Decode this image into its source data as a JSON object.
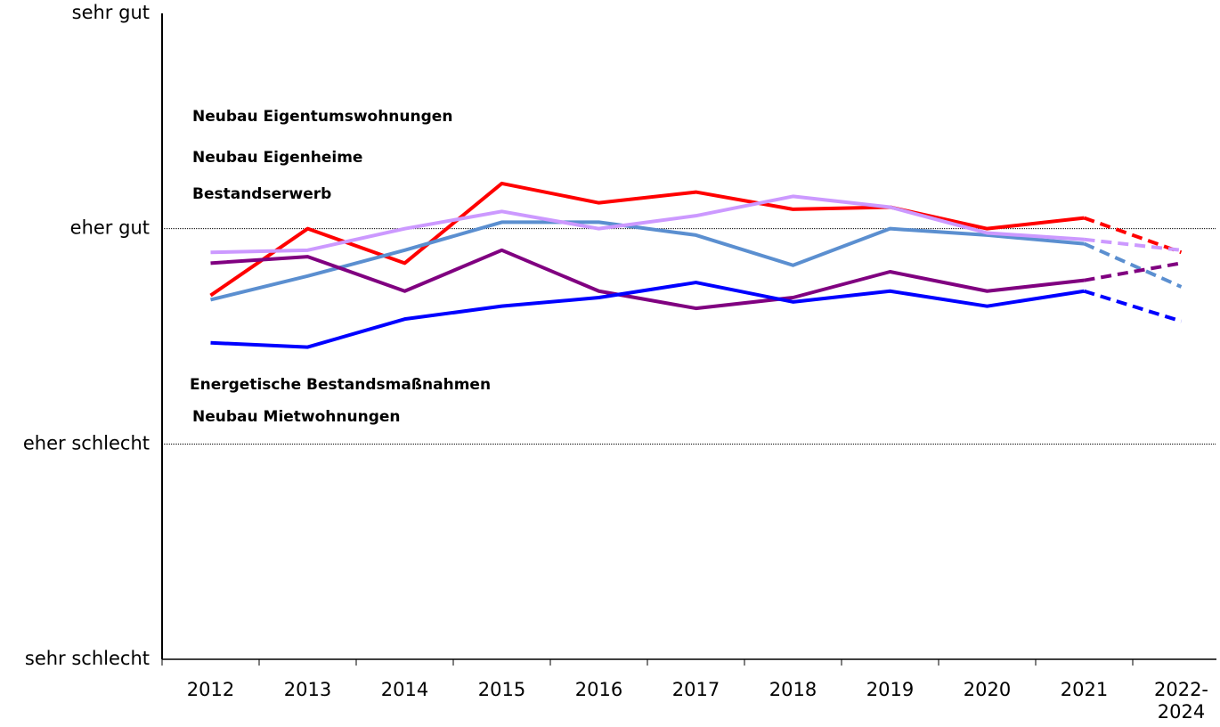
{
  "chart_data": {
    "type": "line",
    "categories": [
      "2012",
      "2013",
      "2014",
      "2015",
      "2016",
      "2017",
      "2018",
      "2019",
      "2020",
      "2021",
      "2022-2024"
    ],
    "series": [
      {
        "name": "Neubau Eigentumswohnungen",
        "color": "#ff0000",
        "values": [
          2.69,
          3.0,
          2.84,
          3.21,
          3.12,
          3.17,
          3.09,
          3.1,
          3.0,
          3.05,
          2.89
        ]
      },
      {
        "name": "Neubau Eigenheime",
        "color": "#5b8fd0",
        "values": [
          2.67,
          2.78,
          2.9,
          3.03,
          3.03,
          2.97,
          2.83,
          3.0,
          2.97,
          2.93,
          2.73
        ]
      },
      {
        "name": "Bestandserwerb",
        "color": "#cc99ff",
        "values": [
          2.89,
          2.9,
          3.0,
          3.08,
          3.0,
          3.06,
          3.15,
          3.1,
          2.98,
          2.95,
          2.9
        ]
      },
      {
        "name": "Energetische Bestandsmaßnahmen",
        "color": "#800080",
        "values": [
          2.84,
          2.87,
          2.71,
          2.9,
          2.71,
          2.63,
          2.68,
          2.8,
          2.71,
          2.76,
          2.84
        ]
      },
      {
        "name": "Neubau Mietwohnungen",
        "color": "#0000ff",
        "values": [
          2.47,
          2.45,
          2.58,
          2.64,
          2.68,
          2.75,
          2.66,
          2.71,
          2.64,
          2.71,
          2.57
        ]
      }
    ],
    "ylim": [
      1,
      4
    ],
    "yticks": [
      {
        "value": 1,
        "label": "sehr schlecht"
      },
      {
        "value": 2,
        "label": "eher schlecht"
      },
      {
        "value": 3,
        "label": "eher gut"
      },
      {
        "value": 4,
        "label": "sehr gut"
      }
    ],
    "grid": true,
    "dashed_last_segment": true
  }
}
